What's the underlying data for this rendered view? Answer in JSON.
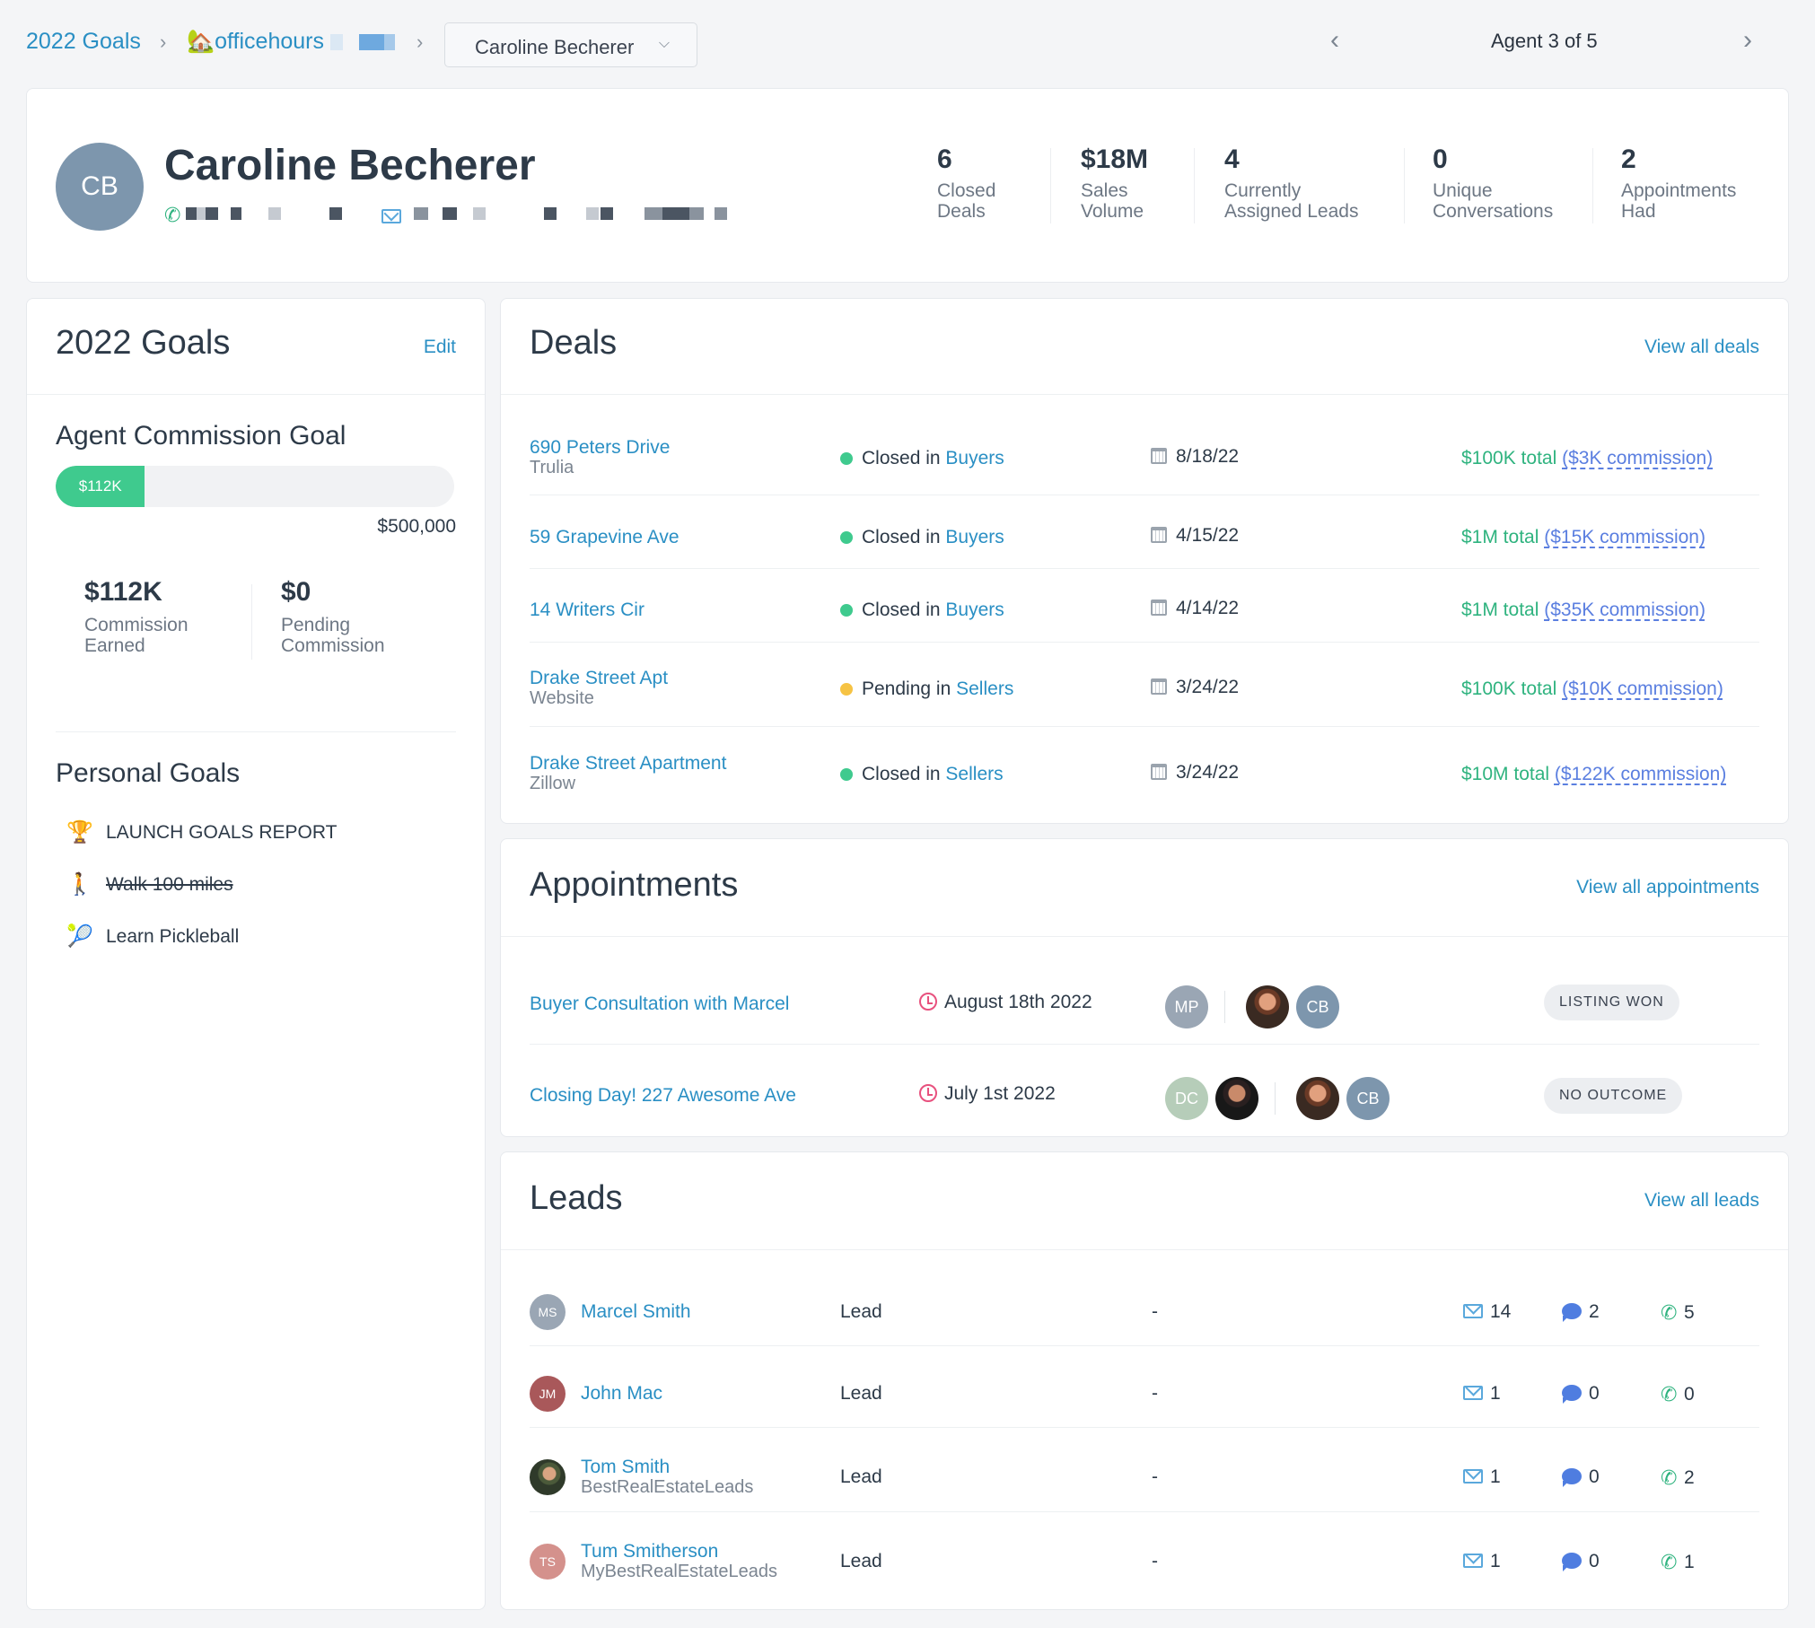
{
  "breadcrumb": {
    "goals": "2022 Goals",
    "team": "officehours",
    "team_emoji": "🏡",
    "agent": "Caroline Becherer"
  },
  "pager": {
    "label": "Agent 3 of 5"
  },
  "profile": {
    "initials": "CB",
    "name": "Caroline Becherer",
    "stats": [
      {
        "value": "6",
        "label1": "Closed",
        "label2": "Deals"
      },
      {
        "value": "$18M",
        "label1": "Sales",
        "label2": "Volume"
      },
      {
        "value": "4",
        "label1": "Currently",
        "label2": "Assigned Leads"
      },
      {
        "value": "0",
        "label1": "Unique",
        "label2": "Conversations"
      },
      {
        "value": "2",
        "label1": "Appointments",
        "label2": "Had"
      }
    ]
  },
  "goals": {
    "title": "2022 Goals",
    "edit": "Edit",
    "commission_title": "Agent Commission Goal",
    "progress_label": "$112K",
    "progress_fraction": 0.224,
    "goal_total": "$500,000",
    "earned_value": "$112K",
    "earned_label1": "Commission",
    "earned_label2": "Earned",
    "pending_value": "$0",
    "pending_label1": "Pending",
    "pending_label2": "Commission",
    "personal_title": "Personal Goals",
    "personal": [
      {
        "icon": "🏆",
        "text": "LAUNCH GOALS REPORT"
      },
      {
        "icon": "🚶",
        "text": "Walk 100 miles"
      },
      {
        "icon": "🎾",
        "text": "Learn Pickleball"
      }
    ]
  },
  "deals": {
    "title": "Deals",
    "view_all": "View all deals",
    "rows": [
      {
        "name": "690 Peters Drive",
        "source": "Trulia",
        "status": "Closed",
        "in": "in",
        "pipeline": "Buyers",
        "date": "8/18/22",
        "total": "$100K total",
        "commission": "($3K commission)",
        "status_color": "#3fca8e"
      },
      {
        "name": "59 Grapevine Ave",
        "source": "",
        "status": "Closed",
        "in": "in",
        "pipeline": "Buyers",
        "date": "4/15/22",
        "total": "$1M total",
        "commission": "($15K commission)",
        "status_color": "#3fca8e"
      },
      {
        "name": "14 Writers Cir",
        "source": "",
        "status": "Closed",
        "in": "in",
        "pipeline": "Buyers",
        "date": "4/14/22",
        "total": "$1M total",
        "commission": "($35K commission)",
        "status_color": "#3fca8e"
      },
      {
        "name": "Drake Street Apt",
        "source": "Website",
        "status": "Pending",
        "in": "in",
        "pipeline": "Sellers",
        "date": "3/24/22",
        "total": "$100K total",
        "commission": "($10K commission)",
        "status_color": "#f6c344"
      },
      {
        "name": "Drake Street Apartment",
        "source": "Zillow",
        "status": "Closed",
        "in": "in",
        "pipeline": "Sellers",
        "date": "3/24/22",
        "total": "$10M total",
        "commission": "($122K commission)",
        "status_color": "#3fca8e"
      }
    ]
  },
  "appointments": {
    "title": "Appointments",
    "view_all": "View all appointments",
    "rows": [
      {
        "name": "Buyer Consultation with Marcel",
        "date": "August 18th 2022",
        "attendee1": "MP",
        "agent_initials": "CB",
        "outcome": "LISTING WON"
      },
      {
        "name": "Closing Day! 227 Awesome Ave",
        "date": "July 1st 2022",
        "attendee1": "DC",
        "agent_initials": "CB",
        "outcome": "NO OUTCOME"
      }
    ]
  },
  "leads": {
    "title": "Leads",
    "view_all": "View all leads",
    "rows": [
      {
        "initials": "MS",
        "name": "Marcel Smith",
        "source": "",
        "type": "Lead",
        "dash": "-",
        "emails": "14",
        "texts": "2",
        "calls": "5",
        "color": "#9aa6b4"
      },
      {
        "initials": "JM",
        "name": "John Mac",
        "source": "",
        "type": "Lead",
        "dash": "-",
        "emails": "1",
        "texts": "0",
        "calls": "0",
        "color": "#a9585a"
      },
      {
        "initials": "",
        "name": "Tom Smith",
        "source": "BestRealEstateLeads",
        "type": "Lead",
        "dash": "-",
        "emails": "1",
        "texts": "0",
        "calls": "2",
        "color": ""
      },
      {
        "initials": "TS",
        "name": "Tum Smitherson",
        "source": "MyBestRealEstateLeads",
        "type": "Lead",
        "dash": "-",
        "emails": "1",
        "texts": "0",
        "calls": "1",
        "color": "#d4918c"
      }
    ]
  }
}
